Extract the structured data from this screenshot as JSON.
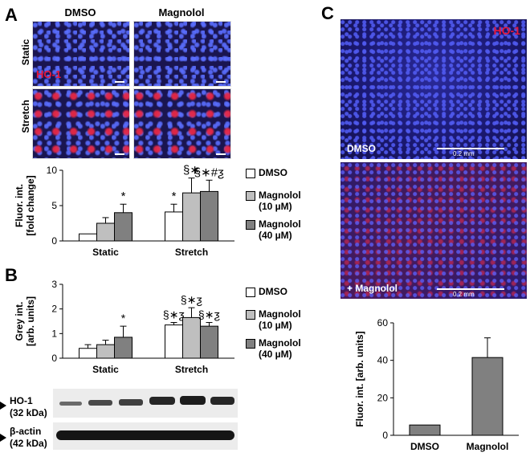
{
  "panel_letters": {
    "a": "A",
    "b": "B",
    "c": "C"
  },
  "panelA": {
    "col_labels": [
      "DMSO",
      "Magnolol"
    ],
    "row_labels": [
      "Static",
      "Stretch"
    ],
    "stain_label": "HO-1",
    "colors": {
      "stain": "#e8173a",
      "nuclei": "#3b4cf0"
    }
  },
  "legend": {
    "items": [
      {
        "label": "DMSO",
        "color": "#ffffff"
      },
      {
        "label": "Magnolol\n(10 µM)",
        "color": "#bfbfbf"
      },
      {
        "label": "Magnolol\n(40 µM)",
        "color": "#808080"
      }
    ]
  },
  "panelC": {
    "stain_label": "HO-1",
    "top_label": "DMSO",
    "bottom_label": "+ Magnolol",
    "scale_label": "0.2 mm"
  },
  "blot": {
    "bands": [
      {
        "label": "HO-1\n(32 kDa)"
      },
      {
        "label": "β-actin\n(42 kDa)"
      }
    ]
  },
  "chart_data": [
    {
      "id": "A",
      "type": "bar",
      "categories": [
        "Static",
        "Stretch"
      ],
      "series": [
        {
          "name": "DMSO",
          "color": "#ffffff",
          "values": [
            1.0,
            4.1
          ],
          "errors": [
            0,
            1.1
          ]
        },
        {
          "name": "Magnolol (10 µM)",
          "color": "#bfbfbf",
          "values": [
            2.5,
            6.8
          ],
          "errors": [
            0.8,
            2.1
          ]
        },
        {
          "name": "Magnolol (40 µM)",
          "color": "#808080",
          "values": [
            4.0,
            7.0
          ],
          "errors": [
            1.2,
            1.6
          ]
        }
      ],
      "annotations": [
        [
          "",
          "",
          "*"
        ],
        [
          "*",
          "§∗",
          "§∗#ƺ"
        ]
      ],
      "ylabel": "Fluor. int.\n[fold  change]",
      "yticks": [
        0,
        5,
        10
      ],
      "ylim": [
        0,
        10
      ]
    },
    {
      "id": "B",
      "type": "bar",
      "categories": [
        "Static",
        "Stretch"
      ],
      "series": [
        {
          "name": "DMSO",
          "color": "#ffffff",
          "values": [
            0.4,
            1.35
          ],
          "errors": [
            0.15,
            0.1
          ]
        },
        {
          "name": "Magnolol (10 µM)",
          "color": "#bfbfbf",
          "values": [
            0.55,
            1.65
          ],
          "errors": [
            0.18,
            0.4
          ]
        },
        {
          "name": "Magnolol (40 µM)",
          "color": "#808080",
          "values": [
            0.85,
            1.3
          ],
          "errors": [
            0.45,
            0.15
          ]
        }
      ],
      "annotations": [
        [
          "",
          "",
          "*"
        ],
        [
          "§∗ƺ",
          "§∗ƺ",
          "§∗ƺ"
        ]
      ],
      "ylabel": "Grey int.\n[arb. units]",
      "yticks": [
        0,
        1,
        2,
        3
      ],
      "ylim": [
        0,
        3
      ]
    },
    {
      "id": "C",
      "type": "bar",
      "categories": [
        "DMSO",
        "Magnolol"
      ],
      "series": [
        {
          "name": "",
          "color": "#808080",
          "values": [
            5.5,
            41.5
          ],
          "errors": [
            0,
            10.5
          ]
        }
      ],
      "annotations": [
        [
          "",
          "*"
        ]
      ],
      "ylabel": "Fluor. int. [arb. units]",
      "yticks": [
        0,
        20,
        40,
        60
      ],
      "ylim": [
        0,
        60
      ]
    }
  ]
}
